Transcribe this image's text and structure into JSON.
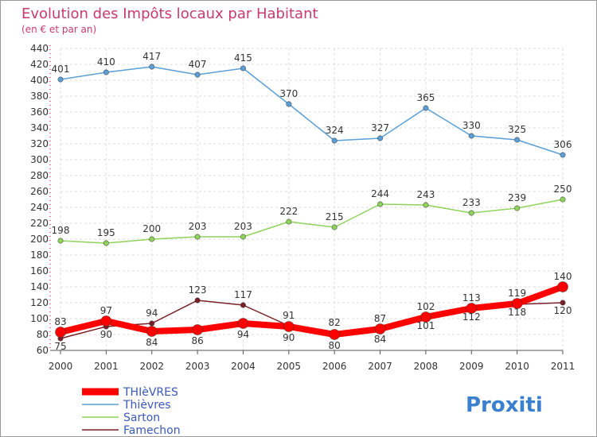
{
  "chart_data": {
    "type": "line",
    "title": "Evolution des Impôts locaux par Habitant",
    "subtitle": "(en € et par an)",
    "x": [
      "2000",
      "2001",
      "2002",
      "2003",
      "2004",
      "2005",
      "2006",
      "2007",
      "2008",
      "2009",
      "2010",
      "2011"
    ],
    "ylim": [
      60,
      440
    ],
    "yticks": [
      60,
      80,
      100,
      120,
      140,
      160,
      180,
      200,
      220,
      240,
      260,
      280,
      300,
      320,
      340,
      360,
      380,
      400,
      420,
      440
    ],
    "grid": true,
    "legend_position": "bottom-left",
    "series": [
      {
        "name": "Thièvres",
        "color": "#5b9fd6",
        "values": [
          401,
          410,
          417,
          407,
          415,
          370,
          324,
          327,
          365,
          330,
          325,
          306
        ]
      },
      {
        "name": "Sarton",
        "color": "#8fd35a",
        "values": [
          198,
          195,
          200,
          203,
          203,
          222,
          215,
          244,
          243,
          233,
          239,
          250
        ]
      },
      {
        "name": "Famechon",
        "color": "#7a1f28",
        "values": [
          75,
          90,
          94,
          123,
          117,
          91,
          82,
          84,
          101,
          112,
          118,
          120
        ]
      },
      {
        "name": "THIèVRES",
        "color": "#ff0000",
        "values": [
          83,
          97,
          84,
          86,
          94,
          90,
          80,
          87,
          102,
          113,
          119,
          140
        ]
      }
    ]
  },
  "brand": {
    "text": "Proxiti"
  }
}
